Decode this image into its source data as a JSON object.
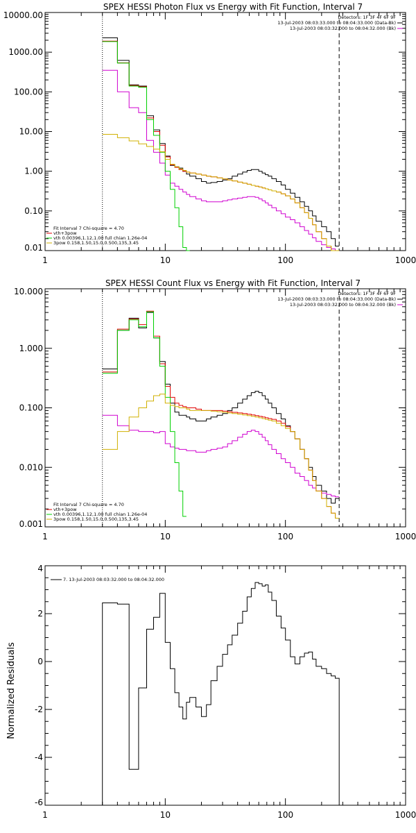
{
  "chart_data": [
    {
      "type": "line",
      "step": true,
      "title": "SPEX HESSI Photon Flux vs Energy with Fit Function, Interval 7",
      "xscale": "log",
      "yscale": "log",
      "xlim": [
        1,
        1000
      ],
      "ylim": [
        0.01,
        10000
      ],
      "xticks": [
        "1",
        "10",
        "100",
        "1000"
      ],
      "yticks": [
        "0.01",
        "0.10",
        "1.00",
        "10.00",
        "100.00",
        "1000.00",
        "10000.00"
      ],
      "vlines": [
        {
          "x": 3,
          "style": "dotted"
        },
        {
          "x": 280,
          "style": "dashed"
        }
      ],
      "legend_right": [
        {
          "text": "Detectors: 1F 3F 4F 6F 9F",
          "color": "#000000"
        },
        {
          "text": "13-Jul-2003 08:03:33.000 to 08:04:33.000 (Data-Bk)",
          "color": "#000000"
        },
        {
          "text": "13-Jul-2003 08:03:32.000 to 08:04:32.000 (Bk)",
          "color": "#d000d0"
        }
      ],
      "legend_left": [
        {
          "text": "Fit Interval 7   Chi-square = 4.70",
          "color": "#000000"
        },
        {
          "text": "vth+3pow",
          "color": "#e00000"
        },
        {
          "text": "vth 0.00396,1.12,1.00  full chian 1.26e-04",
          "color": "#00d000"
        },
        {
          "text": "3pow 0.158,1.50,15.0,0.500,135,3.45",
          "color": "#d0b000"
        }
      ],
      "x": [
        3,
        4,
        5,
        6,
        7,
        8,
        9,
        10,
        11,
        12,
        13,
        14,
        15,
        16,
        18,
        20,
        22,
        24,
        27,
        30,
        33,
        36,
        40,
        44,
        48,
        52,
        56,
        60,
        64,
        68,
        72,
        77,
        84,
        92,
        100,
        110,
        120,
        132,
        144,
        156,
        168,
        180,
        200,
        220,
        240,
        260,
        280
      ],
      "series": [
        {
          "name": "Data-Bk",
          "color": "#000000",
          "values": [
            2300,
            620,
            150,
            140,
            25,
            11,
            5,
            2.4,
            1.4,
            1.3,
            1.2,
            1.0,
            0.85,
            0.75,
            0.65,
            0.55,
            0.5,
            0.52,
            0.55,
            0.6,
            0.65,
            0.75,
            0.85,
            0.95,
            1.05,
            1.1,
            1.1,
            1.0,
            0.9,
            0.82,
            0.75,
            0.65,
            0.55,
            0.45,
            0.35,
            0.28,
            0.22,
            0.17,
            0.13,
            0.1,
            0.075,
            0.055,
            0.04,
            0.03,
            0.02,
            0.013,
            null
          ]
        },
        {
          "name": "Bk",
          "color": "#d000d0",
          "values": [
            350,
            100,
            40,
            30,
            6,
            3,
            1.6,
            0.8,
            0.5,
            0.42,
            0.35,
            0.3,
            0.26,
            0.23,
            0.2,
            0.18,
            0.17,
            0.17,
            0.17,
            0.18,
            0.19,
            0.2,
            0.21,
            0.22,
            0.23,
            0.23,
            0.22,
            0.2,
            0.18,
            0.16,
            0.14,
            0.12,
            0.1,
            0.085,
            0.07,
            0.06,
            0.05,
            0.04,
            0.032,
            0.026,
            0.021,
            0.017,
            0.014,
            0.012,
            0.011,
            0.01,
            null
          ]
        },
        {
          "name": "vth+3pow",
          "color": "#e00000",
          "values": [
            1900,
            540,
            145,
            135,
            22,
            10,
            4.5,
            2.3,
            1.45,
            1.25,
            1.1,
            1.0,
            0.95,
            0.9,
            0.85,
            0.8,
            0.75,
            0.72,
            0.68,
            0.64,
            0.6,
            0.57,
            0.53,
            0.5,
            0.47,
            0.44,
            0.42,
            0.4,
            0.38,
            0.36,
            0.34,
            0.32,
            0.3,
            0.27,
            0.24,
            0.2,
            0.16,
            0.12,
            0.09,
            0.065,
            0.045,
            0.03,
            0.02,
            0.013,
            0.009,
            0.006,
            null
          ]
        },
        {
          "name": "vth",
          "color": "#00d000",
          "values": [
            1850,
            530,
            140,
            130,
            20,
            8,
            3,
            1,
            0.35,
            0.12,
            0.04,
            0.012,
            0.005,
            null,
            null,
            null,
            null,
            null,
            null,
            null,
            null,
            null,
            null,
            null,
            null,
            null,
            null,
            null,
            null,
            null,
            null,
            null,
            null,
            null,
            null,
            null,
            null,
            null,
            null,
            null,
            null,
            null,
            null,
            null,
            null,
            null,
            null
          ]
        },
        {
          "name": "3pow",
          "color": "#d0b000",
          "values": [
            8.5,
            7.0,
            5.8,
            4.9,
            4.2,
            3.6,
            3.1,
            2.0,
            1.5,
            1.3,
            1.15,
            1.05,
            0.95,
            0.9,
            0.85,
            0.8,
            0.75,
            0.72,
            0.68,
            0.64,
            0.6,
            0.57,
            0.53,
            0.5,
            0.47,
            0.44,
            0.42,
            0.4,
            0.38,
            0.36,
            0.34,
            0.32,
            0.3,
            0.27,
            0.24,
            0.2,
            0.16,
            0.12,
            0.09,
            0.065,
            0.045,
            0.03,
            0.02,
            0.013,
            0.009,
            0.006,
            null
          ]
        }
      ]
    },
    {
      "type": "line",
      "step": true,
      "title": "SPEX HESSI Count Flux vs Energy with Fit Function, Interval 7",
      "xscale": "log",
      "yscale": "log",
      "xlim": [
        1,
        1000
      ],
      "ylim": [
        0.001,
        10
      ],
      "xticks": [
        "1",
        "10",
        "100",
        "1000"
      ],
      "yticks": [
        "0.001",
        "0.010",
        "0.100",
        "1.000",
        "10.000"
      ],
      "vlines": [
        {
          "x": 3,
          "style": "dotted"
        },
        {
          "x": 280,
          "style": "dashed"
        }
      ],
      "legend_right": [
        {
          "text": "Detectors: 1F 3F 4F 6F 9F",
          "color": "#000000"
        },
        {
          "text": "13-Jul-2003 08:03:33.000 to 08:04:33.000 (Data-Bk)",
          "color": "#000000"
        },
        {
          "text": "13-Jul-2003 08:03:32.000 to 08:04:32.000 (Bk)",
          "color": "#d000d0"
        }
      ],
      "legend_left": [
        {
          "text": "Fit Interval 7   Chi-square = 4.70",
          "color": "#000000"
        },
        {
          "text": "vth+3pow",
          "color": "#e00000"
        },
        {
          "text": "vth 0.00396,1.12,1.00  full chian 1.26e-04",
          "color": "#00d000"
        },
        {
          "text": "3pow 0.158,1.50,15.0,0.500,135,3.45",
          "color": "#d0b000"
        }
      ],
      "x": [
        3,
        4,
        5,
        6,
        7,
        8,
        9,
        10,
        11,
        12,
        13,
        14,
        15,
        16,
        18,
        20,
        22,
        24,
        27,
        30,
        33,
        36,
        40,
        44,
        48,
        52,
        56,
        60,
        64,
        68,
        72,
        77,
        84,
        92,
        100,
        110,
        120,
        132,
        144,
        156,
        168,
        180,
        200,
        220,
        240,
        260,
        280
      ],
      "series": [
        {
          "name": "Data-Bk",
          "color": "#000000",
          "values": [
            0.45,
            2.0,
            3.2,
            2.2,
            4.0,
            1.5,
            0.6,
            0.25,
            0.12,
            0.085,
            0.075,
            0.075,
            0.07,
            0.065,
            0.06,
            0.06,
            0.065,
            0.07,
            0.075,
            0.08,
            0.09,
            0.1,
            0.12,
            0.14,
            0.16,
            0.18,
            0.19,
            0.18,
            0.16,
            0.14,
            0.12,
            0.1,
            0.08,
            0.065,
            0.05,
            0.04,
            0.03,
            0.02,
            0.014,
            0.01,
            0.007,
            0.005,
            0.004,
            0.003,
            0.0025,
            0.003,
            null
          ]
        },
        {
          "name": "Bk",
          "color": "#d000d0",
          "values": [
            0.075,
            0.05,
            0.042,
            0.04,
            0.04,
            0.038,
            0.04,
            0.025,
            0.022,
            0.021,
            0.02,
            0.02,
            0.019,
            0.019,
            0.018,
            0.018,
            0.019,
            0.02,
            0.021,
            0.022,
            0.025,
            0.028,
            0.032,
            0.036,
            0.04,
            0.042,
            0.04,
            0.036,
            0.032,
            0.028,
            0.024,
            0.02,
            0.017,
            0.014,
            0.012,
            0.01,
            0.008,
            0.007,
            0.006,
            0.005,
            0.0045,
            0.004,
            0.0037,
            0.0035,
            0.0033,
            0.0032,
            null
          ]
        },
        {
          "name": "vth+3pow",
          "color": "#e00000",
          "values": [
            0.4,
            2.1,
            3.1,
            2.5,
            4.2,
            1.6,
            0.55,
            0.23,
            0.15,
            0.12,
            0.11,
            0.105,
            0.1,
            0.1,
            0.095,
            0.09,
            0.09,
            0.09,
            0.09,
            0.088,
            0.086,
            0.084,
            0.082,
            0.08,
            0.078,
            0.076,
            0.074,
            0.072,
            0.07,
            0.068,
            0.066,
            0.064,
            0.06,
            0.055,
            0.048,
            0.04,
            0.03,
            0.02,
            0.014,
            0.009,
            0.006,
            0.004,
            0.003,
            0.0022,
            0.0017,
            0.0014,
            null
          ]
        },
        {
          "name": "vth",
          "color": "#00d000",
          "values": [
            0.38,
            2.0,
            3.0,
            2.3,
            4.1,
            1.5,
            0.5,
            0.15,
            0.04,
            0.012,
            0.004,
            0.0015,
            null,
            null,
            null,
            null,
            null,
            null,
            null,
            null,
            null,
            null,
            null,
            null,
            null,
            null,
            null,
            null,
            null,
            null,
            null,
            null,
            null,
            null,
            null,
            null,
            null,
            null,
            null,
            null,
            null,
            null,
            null,
            null,
            null,
            null,
            null
          ]
        },
        {
          "name": "3pow",
          "color": "#d0b000",
          "values": [
            0.02,
            0.04,
            0.07,
            0.1,
            0.13,
            0.16,
            0.17,
            0.12,
            0.11,
            0.105,
            0.1,
            0.1,
            0.095,
            0.09,
            0.09,
            0.09,
            0.09,
            0.088,
            0.086,
            0.084,
            0.082,
            0.08,
            0.078,
            0.076,
            0.074,
            0.072,
            0.07,
            0.068,
            0.066,
            0.064,
            0.062,
            0.06,
            0.055,
            0.05,
            0.045,
            0.04,
            0.03,
            0.02,
            0.014,
            0.009,
            0.006,
            0.004,
            0.003,
            0.0022,
            0.0017,
            0.0014,
            null
          ]
        }
      ]
    },
    {
      "type": "line",
      "step": true,
      "title": "",
      "ylabel": "Normalized Residuals",
      "xscale": "log",
      "yscale": "linear",
      "xlim": [
        1,
        1000
      ],
      "ylim": [
        -6,
        4
      ],
      "xticks": [
        "1",
        "10",
        "100",
        "1000"
      ],
      "yticks": [
        "-6",
        "-4",
        "-2",
        "0",
        "2",
        "4"
      ],
      "legend_left": [
        {
          "text": "7. 13-Jul-2003 08:03:32.000 to 08:04:32.000",
          "color": "#000000"
        }
      ],
      "x": [
        3,
        4,
        5,
        6,
        7,
        8,
        9,
        10,
        11,
        12,
        13,
        14,
        15,
        16,
        18,
        20,
        22,
        24,
        27,
        30,
        33,
        36,
        40,
        44,
        48,
        52,
        56,
        60,
        64,
        68,
        72,
        77,
        84,
        92,
        100,
        110,
        120,
        132,
        144,
        156,
        168,
        180,
        200,
        220,
        240,
        260,
        280
      ],
      "series": [
        {
          "name": "",
          "color": "#000000",
          "from_bottom": true,
          "values": [
            2.45,
            2.4,
            -4.5,
            -1.1,
            1.35,
            1.85,
            2.85,
            0.8,
            -0.3,
            -1.3,
            -1.9,
            -2.4,
            -1.7,
            -1.5,
            -1.9,
            -2.3,
            -1.8,
            -0.8,
            -0.2,
            0.3,
            0.7,
            1.1,
            1.6,
            2.1,
            2.7,
            3.05,
            3.3,
            3.25,
            3.15,
            3.2,
            2.9,
            2.55,
            1.9,
            1.4,
            0.9,
            0.2,
            -0.1,
            0.2,
            0.35,
            0.4,
            0.1,
            -0.2,
            -0.3,
            -0.5,
            -0.6,
            -0.7,
            null
          ]
        }
      ]
    }
  ]
}
